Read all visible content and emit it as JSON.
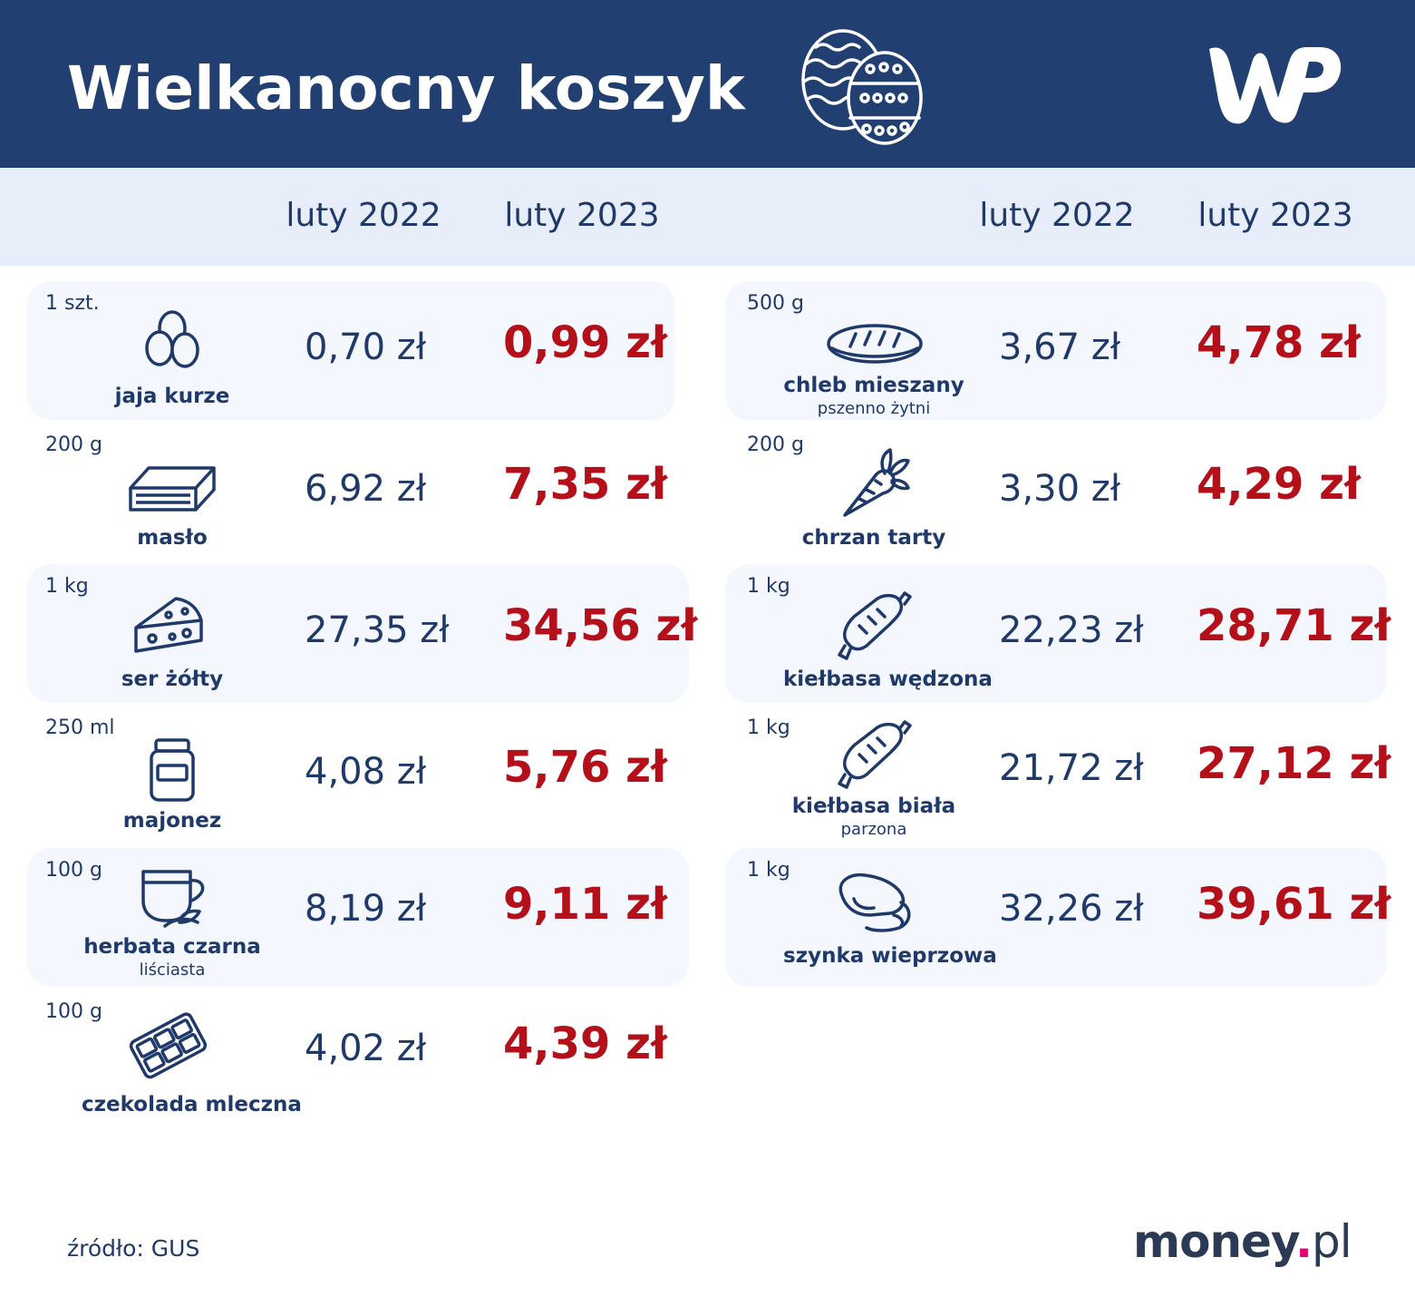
{
  "header": {
    "title": "Wielkanocny koszyk",
    "decor_icon": "easter-eggs-icon",
    "logo_icon": "wp-logo-icon"
  },
  "columns": {
    "left": {
      "col1": "luty 2022",
      "col2": "luty 2023"
    },
    "right": {
      "col1": "luty 2022",
      "col2": "luty 2023"
    }
  },
  "colors": {
    "header_bg": "#223f72",
    "column_bar_bg": "#e7eef9",
    "card_bg": "#f4f7fd",
    "text_blue": "#1f3a6a",
    "price_red": "#b3101a"
  },
  "left_items": [
    {
      "unit": "1 szt.",
      "name": "jaja kurze",
      "sub": "",
      "icon": "eggs-icon",
      "price_2022": "0,70 zł",
      "price_2023": "0,99 zł"
    },
    {
      "unit": "200 g",
      "name": "masło",
      "sub": "",
      "icon": "butter-icon",
      "price_2022": "6,92 zł",
      "price_2023": "7,35 zł"
    },
    {
      "unit": "1 kg",
      "name": "ser żółty",
      "sub": "",
      "icon": "cheese-icon",
      "price_2022": "27,35 zł",
      "price_2023": "34,56 zł"
    },
    {
      "unit": "250 ml",
      "name": "majonez",
      "sub": "",
      "icon": "jar-icon",
      "price_2022": "4,08 zł",
      "price_2023": "5,76 zł"
    },
    {
      "unit": "100 g",
      "name": "herbata czarna",
      "sub": "liściasta",
      "icon": "tea-cup-icon",
      "price_2022": "8,19 zł",
      "price_2023": "9,11 zł"
    },
    {
      "unit": "100 g",
      "name": "czekolada mleczna",
      "sub": "",
      "icon": "chocolate-icon",
      "price_2022": "4,02 zł",
      "price_2023": "4,39 zł"
    }
  ],
  "right_items": [
    {
      "unit": "500 g",
      "name": "chleb mieszany",
      "sub": "pszenno żytni",
      "icon": "bread-icon",
      "price_2022": "3,67 zł",
      "price_2023": "4,78 zł"
    },
    {
      "unit": "200 g",
      "name": "chrzan tarty",
      "sub": "",
      "icon": "horseradish-icon",
      "price_2022": "3,30 zł",
      "price_2023": "4,29 zł"
    },
    {
      "unit": "1 kg",
      "name": "kiełbasa wędzona",
      "sub": "",
      "icon": "sausage-icon",
      "price_2022": "22,23 zł",
      "price_2023": "28,71 zł"
    },
    {
      "unit": "1 kg",
      "name": "kiełbasa biała",
      "sub": "parzona",
      "icon": "sausage-icon",
      "price_2022": "21,72 zł",
      "price_2023": "27,12 zł"
    },
    {
      "unit": "1 kg",
      "name": "szynka wieprzowa",
      "sub": "",
      "icon": "ham-icon",
      "price_2022": "32,26 zł",
      "price_2023": "39,61 zł"
    }
  ],
  "footer": {
    "source": "źródło: GUS",
    "brand_main": "money",
    "brand_dot": ".",
    "brand_tld": "pl"
  }
}
